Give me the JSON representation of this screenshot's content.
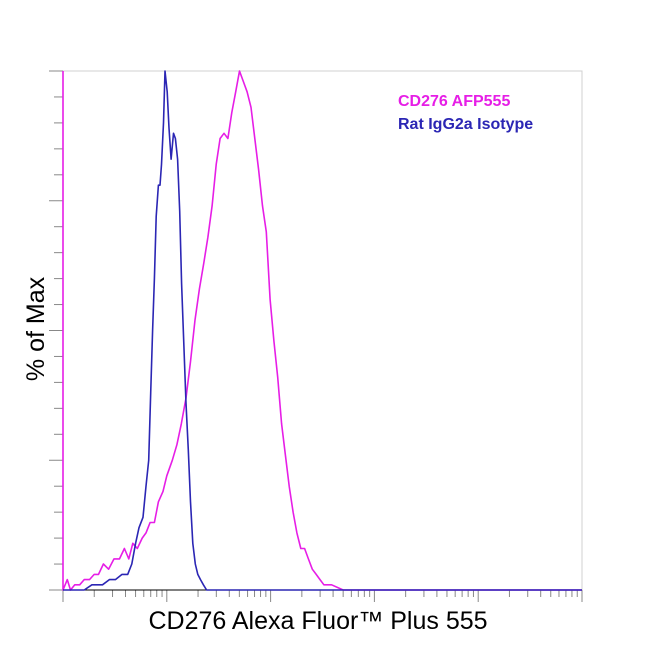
{
  "chart_data": {
    "type": "line",
    "title": "",
    "xlabel": "CD276 Alexa Fluor™ Plus 555",
    "ylabel": "% of Max",
    "x_scale": "log",
    "xlim": [
      1,
      100000
    ],
    "ylim": [
      0,
      100
    ],
    "grid": false,
    "legend_position": "top-right",
    "series": [
      {
        "name": "CD276 AFP555",
        "color": "#e61ee6",
        "points": [
          [
            1,
            100
          ],
          [
            1,
            0
          ],
          [
            1.1,
            2
          ],
          [
            1.18,
            0
          ],
          [
            1.3,
            1
          ],
          [
            1.45,
            1
          ],
          [
            1.6,
            2
          ],
          [
            1.8,
            2
          ],
          [
            2.0,
            3
          ],
          [
            2.2,
            3
          ],
          [
            2.45,
            5
          ],
          [
            2.75,
            4
          ],
          [
            3.1,
            6
          ],
          [
            3.5,
            6
          ],
          [
            3.9,
            8
          ],
          [
            4.3,
            6
          ],
          [
            4.7,
            9
          ],
          [
            5.2,
            8
          ],
          [
            5.8,
            10
          ],
          [
            6.3,
            11
          ],
          [
            6.9,
            13
          ],
          [
            7.6,
            13
          ],
          [
            8.3,
            17
          ],
          [
            9.2,
            19
          ],
          [
            10,
            22
          ],
          [
            11.3,
            25
          ],
          [
            12.5,
            28
          ],
          [
            13.8,
            32
          ],
          [
            15.3,
            37
          ],
          [
            16.9,
            44
          ],
          [
            18.7,
            52
          ],
          [
            20.6,
            58
          ],
          [
            22.7,
            63
          ],
          [
            24.9,
            68
          ],
          [
            27.3,
            74
          ],
          [
            29.9,
            82
          ],
          [
            32.6,
            87
          ],
          [
            35.6,
            88
          ],
          [
            38.8,
            87
          ],
          [
            42.3,
            92
          ],
          [
            46.1,
            96
          ],
          [
            50.2,
            100
          ],
          [
            54.6,
            98
          ],
          [
            59.4,
            96
          ],
          [
            64.8,
            93
          ],
          [
            70.4,
            87
          ],
          [
            76.7,
            81
          ],
          [
            83.5,
            74
          ],
          [
            90.9,
            69
          ],
          [
            98.9,
            56
          ],
          [
            107.6,
            48
          ],
          [
            117.1,
            41
          ],
          [
            127.5,
            32
          ],
          [
            138.8,
            26
          ],
          [
            151.2,
            20
          ],
          [
            164.6,
            15
          ],
          [
            179.2,
            11
          ],
          [
            195.2,
            8
          ],
          [
            212.6,
            8
          ],
          [
            231.5,
            6
          ],
          [
            252.2,
            4
          ],
          [
            274.7,
            3
          ],
          [
            299.2,
            2
          ],
          [
            326,
            1
          ],
          [
            355,
            1
          ],
          [
            387,
            1
          ],
          [
            500,
            0
          ],
          [
            700,
            0
          ],
          [
            1000,
            0
          ],
          [
            2000,
            0
          ],
          [
            5000,
            0
          ],
          [
            10000,
            0
          ],
          [
            100000,
            0
          ]
        ]
      },
      {
        "name": "Rat IgG2a Isotype",
        "color": "#2b26b4",
        "points": [
          [
            1,
            0
          ],
          [
            1.3,
            0
          ],
          [
            1.6,
            0
          ],
          [
            1.9,
            1
          ],
          [
            2.1,
            1
          ],
          [
            2.4,
            1
          ],
          [
            2.8,
            2
          ],
          [
            3.2,
            2
          ],
          [
            3.7,
            3
          ],
          [
            4.2,
            3
          ],
          [
            4.6,
            5
          ],
          [
            5.0,
            9
          ],
          [
            5.4,
            12
          ],
          [
            5.9,
            14
          ],
          [
            6.3,
            20
          ],
          [
            6.7,
            25
          ],
          [
            7.0,
            38
          ],
          [
            7.3,
            50
          ],
          [
            7.6,
            60
          ],
          [
            7.9,
            72
          ],
          [
            8.3,
            78
          ],
          [
            8.6,
            78
          ],
          [
            8.9,
            82
          ],
          [
            9.3,
            90
          ],
          [
            9.6,
            100
          ],
          [
            10.1,
            96
          ],
          [
            10.5,
            89
          ],
          [
            11.0,
            83
          ],
          [
            11.6,
            88
          ],
          [
            12.1,
            87
          ],
          [
            12.7,
            83
          ],
          [
            13.3,
            73
          ],
          [
            13.9,
            59
          ],
          [
            14.6,
            47
          ],
          [
            15.3,
            36
          ],
          [
            16.1,
            27
          ],
          [
            16.9,
            17
          ],
          [
            17.8,
            9
          ],
          [
            18.8,
            5
          ],
          [
            19.9,
            3
          ],
          [
            21.1,
            2
          ],
          [
            22.5,
            1
          ],
          [
            24.2,
            0
          ],
          [
            30,
            0
          ],
          [
            50,
            0
          ],
          [
            100,
            0
          ],
          [
            1000,
            0
          ],
          [
            10000,
            0
          ],
          [
            100000,
            0
          ]
        ]
      }
    ]
  }
}
